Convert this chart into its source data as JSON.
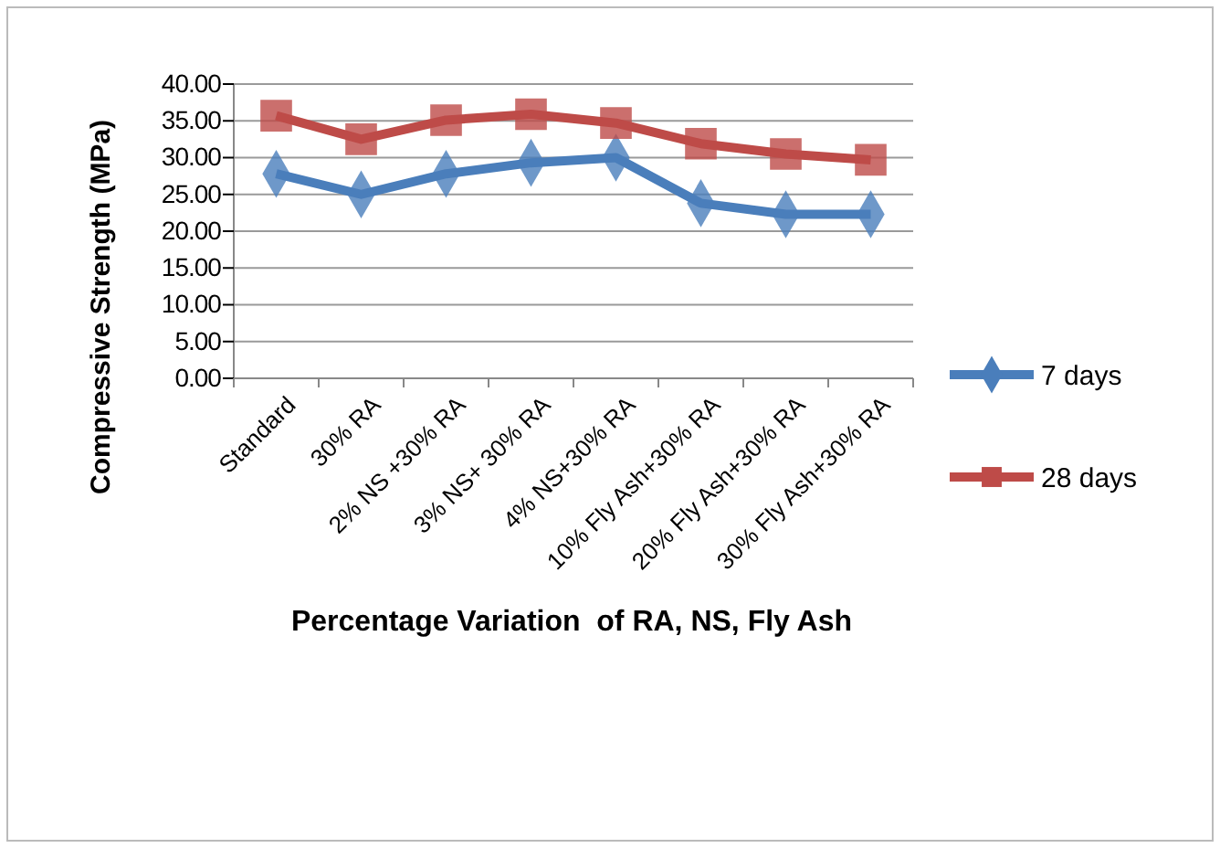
{
  "chart_data": {
    "type": "line",
    "xlabel": "Percentage Variation  of RA, NS, Fly Ash",
    "ylabel": "Compressive Strength (MPa)",
    "categories": [
      "Standard",
      "30% RA",
      "2% NS +30% RA",
      "3% NS+ 30% RA",
      "4% NS+30% RA",
      "10% Fly Ash+30% RA",
      "20% Fly Ash+30% RA",
      "30% Fly Ash+30% RA"
    ],
    "series": [
      {
        "name": "7 days",
        "color": "#4a7ebb",
        "marker": "diamond",
        "values": [
          27.8,
          25.0,
          27.8,
          29.3,
          30.0,
          23.8,
          22.3,
          22.3
        ]
      },
      {
        "name": "28 days",
        "color": "#be4b48",
        "marker": "square",
        "values": [
          35.7,
          32.5,
          35.1,
          35.9,
          34.7,
          31.9,
          30.5,
          29.7
        ]
      }
    ],
    "ylim": [
      0,
      40
    ],
    "yticks": [
      {
        "value": 0,
        "label": "0.00"
      },
      {
        "value": 5,
        "label": "5.00"
      },
      {
        "value": 10,
        "label": "10.00"
      },
      {
        "value": 15,
        "label": "15.00"
      },
      {
        "value": 20,
        "label": "20.00"
      },
      {
        "value": 25,
        "label": "25.00"
      },
      {
        "value": 30,
        "label": "30.00"
      },
      {
        "value": 35,
        "label": "35.00"
      },
      {
        "value": 40,
        "label": "40.00"
      }
    ],
    "grid": "y",
    "legend": "right"
  }
}
